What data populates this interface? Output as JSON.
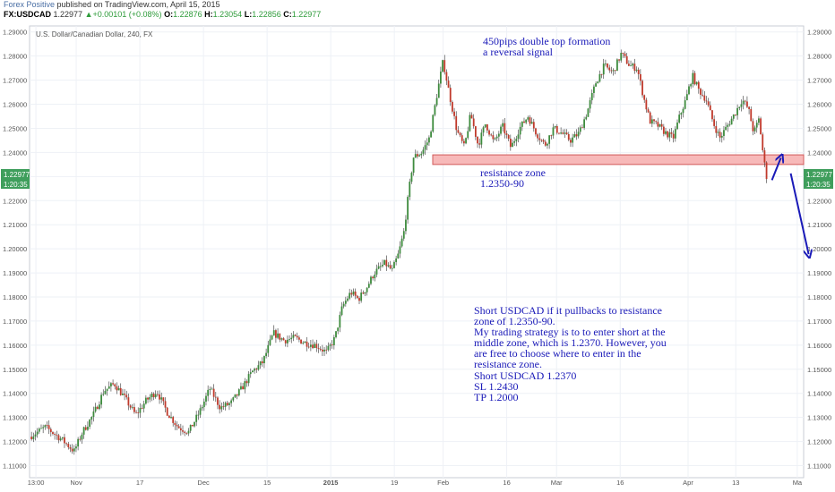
{
  "header": {
    "publisher": "Forex Positive",
    "published_text": " published on TradingView.com, April 15, 2015",
    "symbol": "FX:USDCAD",
    "last": "1.22977",
    "change": "+0.00101 (+0.08%)",
    "o_label": "O:",
    "open": "1.22876",
    "h_label": "H:",
    "high": "1.23054",
    "l_label": "L:",
    "low": "1.22856",
    "c_label": "C:",
    "close": "1.22977"
  },
  "chart_data": {
    "type": "candlestick",
    "title": "U.S. Dollar/Canadian Dollar, 240, FX",
    "ylim": [
      1.105,
      1.2925
    ],
    "y_ticks": [
      "1.29000",
      "1.28000",
      "1.27000",
      "1.26000",
      "1.25000",
      "1.24000",
      "1.23000",
      "1.22000",
      "1.21000",
      "1.20000",
      "1.19000",
      "1.18000",
      "1.17000",
      "1.16000",
      "1.15000",
      "1.14000",
      "1.13000",
      "1.12000",
      "1.11000"
    ],
    "x_ticks": [
      {
        "label": "13:00",
        "pos": 0.6
      },
      {
        "label": "Nov",
        "pos": 4.4
      },
      {
        "label": "17",
        "pos": 10.4
      },
      {
        "label": "Dec",
        "pos": 16.4
      },
      {
        "label": "15",
        "pos": 22.4
      },
      {
        "label": "2015",
        "pos": 28.4
      },
      {
        "label": "19",
        "pos": 34.4
      },
      {
        "label": "Feb",
        "pos": 39.0
      },
      {
        "label": "16",
        "pos": 45.0
      },
      {
        "label": "Mar",
        "pos": 49.7
      },
      {
        "label": "16",
        "pos": 55.7
      },
      {
        "label": "Apr",
        "pos": 62.1
      },
      {
        "label": "13",
        "pos": 66.6
      },
      {
        "label": "Ma",
        "pos": 72.4
      }
    ],
    "price_path": [
      [
        0,
        1.122
      ],
      [
        1.5,
        1.126
      ],
      [
        3,
        1.121
      ],
      [
        4.2,
        1.116
      ],
      [
        5,
        1.124
      ],
      [
        6,
        1.131
      ],
      [
        7,
        1.141
      ],
      [
        8,
        1.144
      ],
      [
        9,
        1.138
      ],
      [
        10,
        1.131
      ],
      [
        11,
        1.137
      ],
      [
        12,
        1.141
      ],
      [
        13,
        1.132
      ],
      [
        14,
        1.126
      ],
      [
        15,
        1.124
      ],
      [
        16,
        1.132
      ],
      [
        17,
        1.142
      ],
      [
        18,
        1.134
      ],
      [
        19,
        1.136
      ],
      [
        20,
        1.142
      ],
      [
        21,
        1.149
      ],
      [
        22,
        1.153
      ],
      [
        23,
        1.165
      ],
      [
        24,
        1.162
      ],
      [
        25,
        1.163
      ],
      [
        26,
        1.161
      ],
      [
        27,
        1.16
      ],
      [
        28,
        1.157
      ],
      [
        28.8,
        1.163
      ],
      [
        29.5,
        1.176
      ],
      [
        30.3,
        1.182
      ],
      [
        31,
        1.179
      ],
      [
        31.8,
        1.184
      ],
      [
        32.5,
        1.19
      ],
      [
        33.5,
        1.194
      ],
      [
        34.2,
        1.191
      ],
      [
        34.8,
        1.198
      ],
      [
        35.3,
        1.207
      ],
      [
        35.8,
        1.225
      ],
      [
        36.2,
        1.238
      ],
      [
        37,
        1.24
      ],
      [
        37.7,
        1.246
      ],
      [
        38.5,
        1.266
      ],
      [
        39,
        1.278
      ],
      [
        39.6,
        1.264
      ],
      [
        40.3,
        1.249
      ],
      [
        41,
        1.242
      ],
      [
        41.6,
        1.256
      ],
      [
        42.3,
        1.243
      ],
      [
        43,
        1.252
      ],
      [
        43.8,
        1.244
      ],
      [
        44.6,
        1.251
      ],
      [
        45.4,
        1.242
      ],
      [
        46.2,
        1.25
      ],
      [
        47,
        1.255
      ],
      [
        47.8,
        1.248
      ],
      [
        48.6,
        1.243
      ],
      [
        49.4,
        1.25
      ],
      [
        50.2,
        1.248
      ],
      [
        51,
        1.245
      ],
      [
        51.8,
        1.248
      ],
      [
        52.6,
        1.257
      ],
      [
        53.4,
        1.269
      ],
      [
        54.2,
        1.276
      ],
      [
        55,
        1.273
      ],
      [
        55.8,
        1.281
      ],
      [
        56.6,
        1.276
      ],
      [
        57.3,
        1.275
      ],
      [
        57.9,
        1.263
      ],
      [
        58.5,
        1.253
      ],
      [
        59.3,
        1.251
      ],
      [
        60,
        1.248
      ],
      [
        60.7,
        1.246
      ],
      [
        61.3,
        1.255
      ],
      [
        61.9,
        1.262
      ],
      [
        62.5,
        1.272
      ],
      [
        63.1,
        1.266
      ],
      [
        63.8,
        1.262
      ],
      [
        64.5,
        1.252
      ],
      [
        65.1,
        1.246
      ],
      [
        65.8,
        1.251
      ],
      [
        66.5,
        1.256
      ],
      [
        67.2,
        1.262
      ],
      [
        67.8,
        1.258
      ],
      [
        68.3,
        1.248
      ],
      [
        68.8,
        1.254
      ],
      [
        69.1,
        1.242
      ],
      [
        69.5,
        1.229
      ]
    ],
    "annotations": {
      "double_top": [
        "450pips double top formation",
        "a reversal signal"
      ],
      "zone_label": [
        "resistance zone",
        "1.2350-90"
      ],
      "zone": [
        1.235,
        1.239
      ],
      "strategy": [
        "Short USDCAD if it pullbacks to resistance",
        "zone of 1.2350-90.",
        "My trading strategy is to to enter short at the",
        "middle zone, which is 1.2370. However, you",
        "are free to choose where to enter in the",
        "resistance zone."
      ],
      "trade": [
        "Short USDCAD 1.2370",
        "SL 1.2430",
        "TP 1.2000"
      ]
    },
    "price_labels": {
      "last": "1.22977",
      "countdown": "1:20:35"
    },
    "colors": {
      "up": "#3d8b3d",
      "down": "#c0392b",
      "wick": "#333333",
      "zone_fill": "#f7b9b9",
      "zone_stroke": "#d15a5a",
      "annotation": "#1a1ab8",
      "grid": "#eef1f6",
      "tag_bg": "#3f9e5c"
    }
  }
}
